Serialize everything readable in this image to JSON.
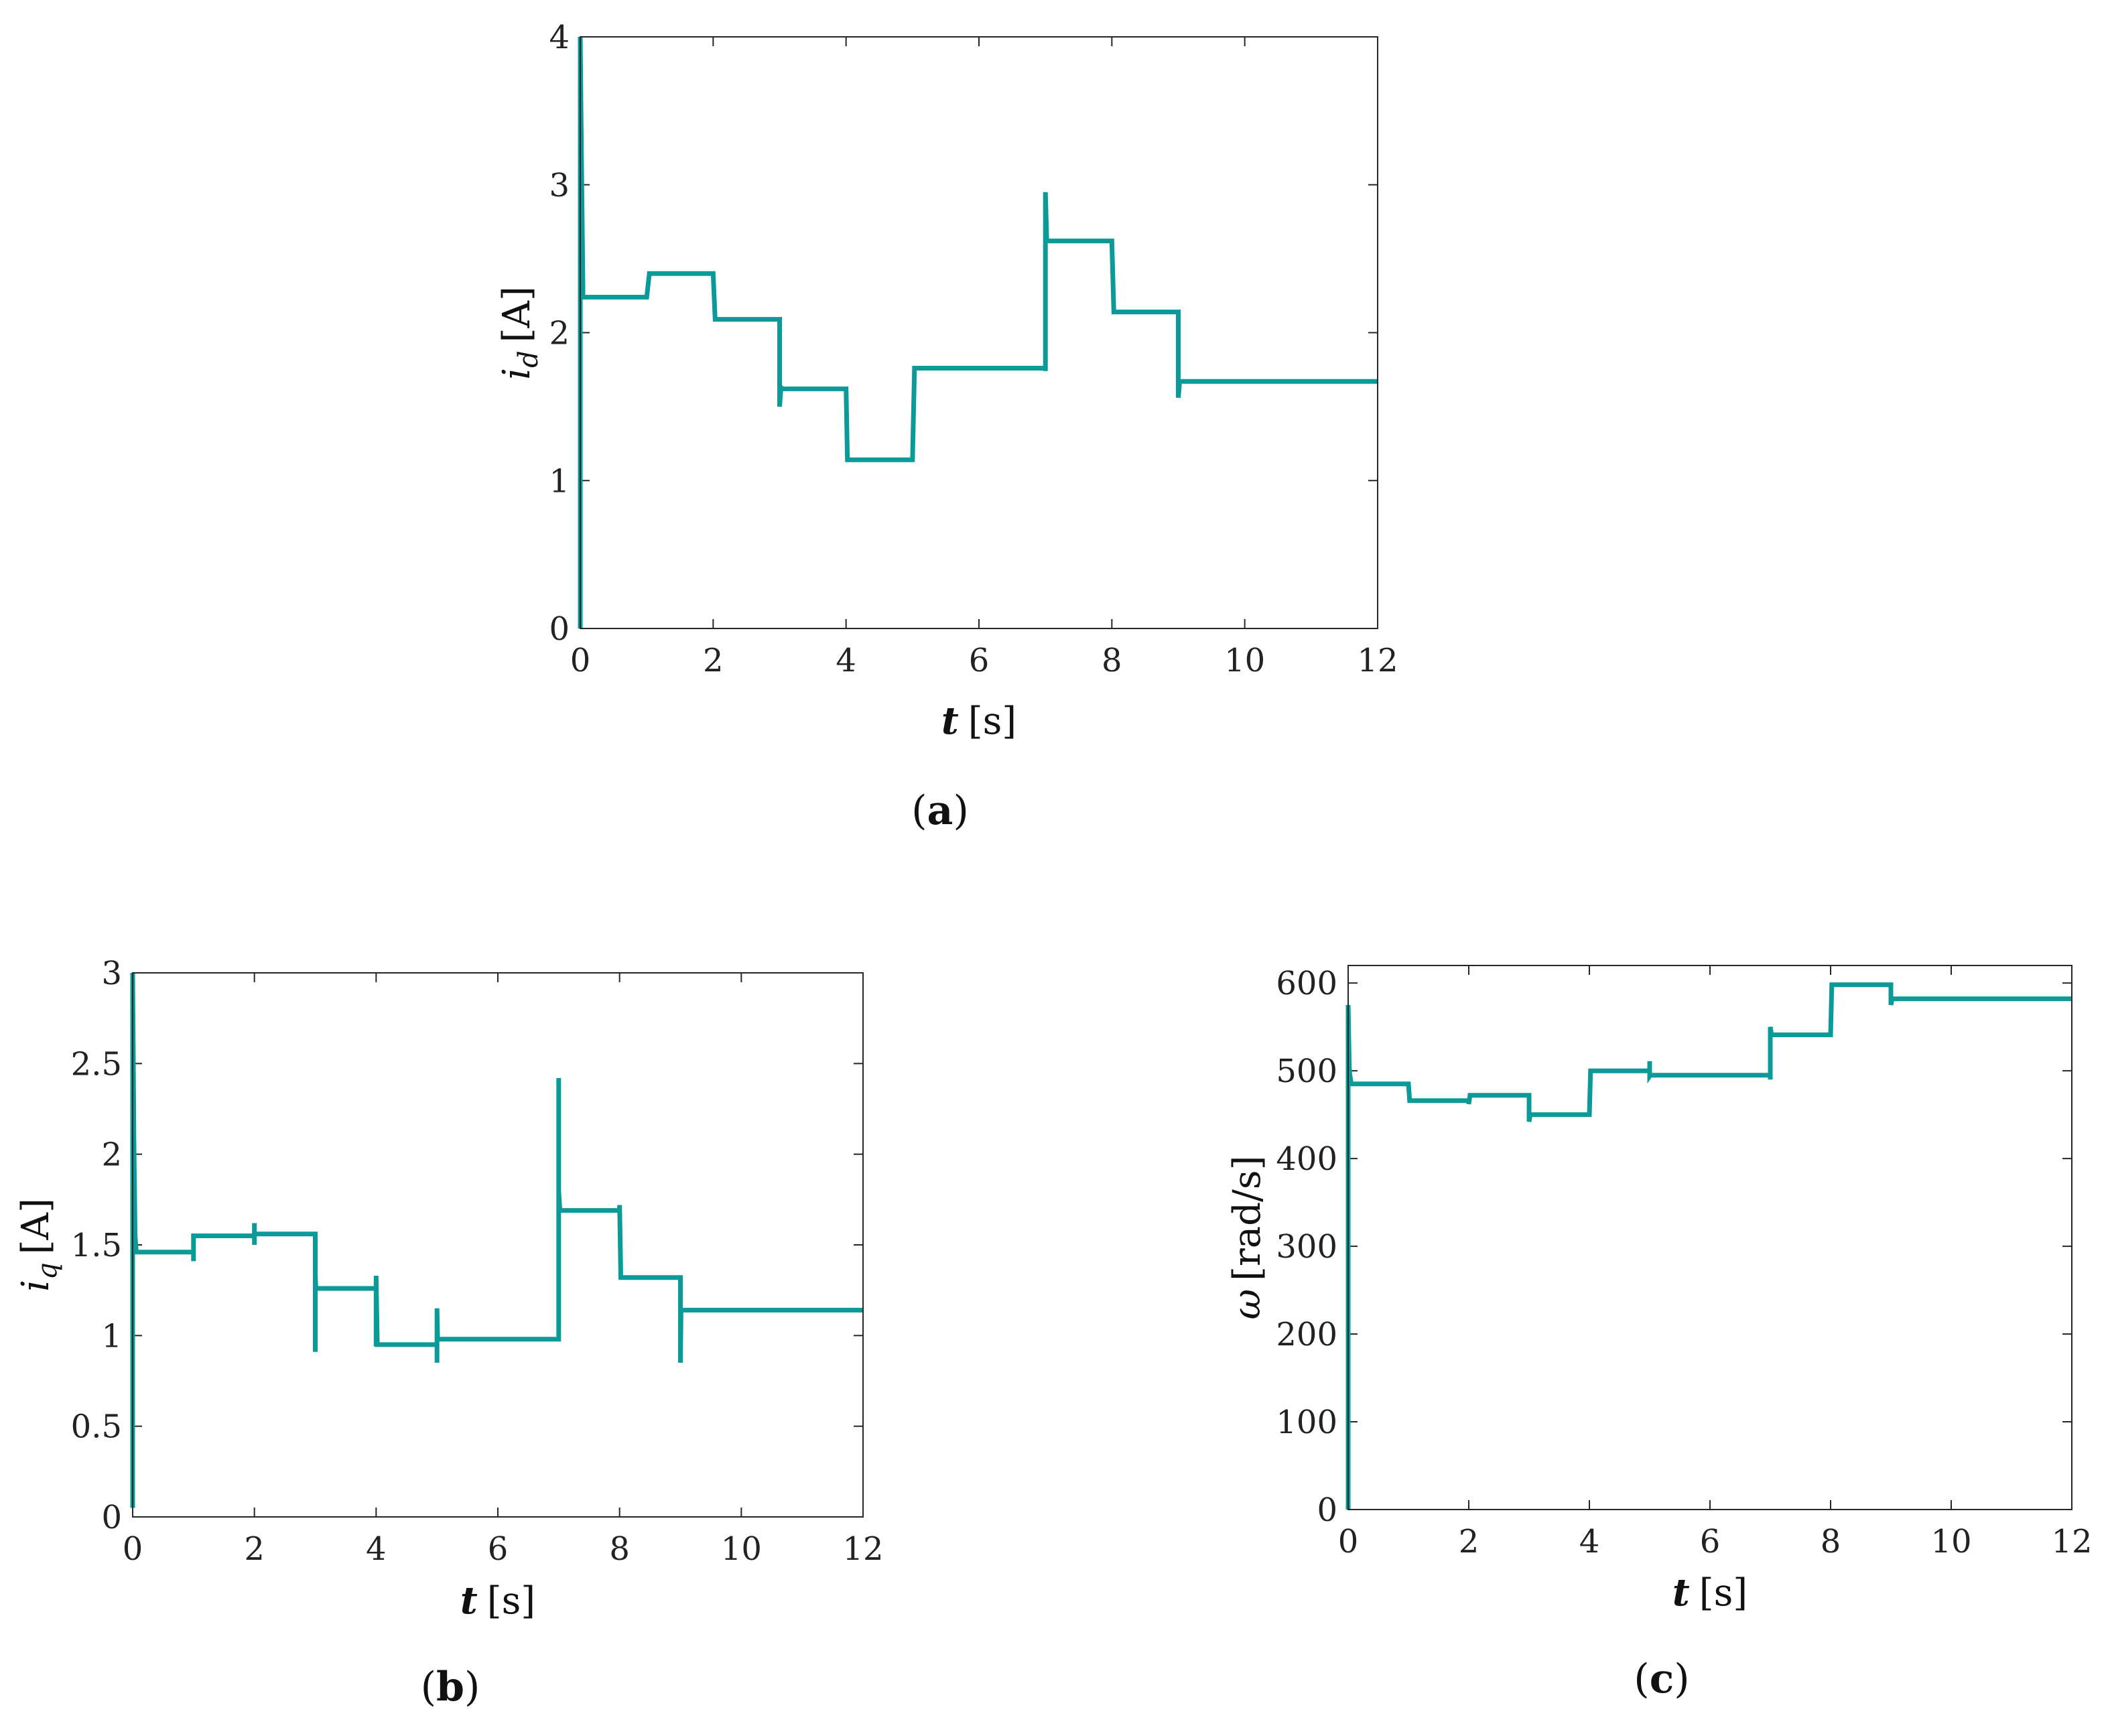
{
  "figure": {
    "series_color": "#0b9a97"
  },
  "chart_data": [
    {
      "type": "line",
      "panel": "a",
      "caption": {
        "letter": "a",
        "left": "(",
        "right": ")"
      },
      "title": "",
      "xlabel": {
        "var": "t",
        "unit": "[s]"
      },
      "ylabel": {
        "var": "i",
        "sub": "d",
        "unit": "[A]"
      },
      "xlim": [
        0,
        12
      ],
      "ylim": [
        0,
        4
      ],
      "xticks": [
        0,
        2,
        4,
        6,
        8,
        10,
        12
      ],
      "xtick_labels": [
        "0",
        "2",
        "4",
        "6",
        "8",
        "10",
        "12"
      ],
      "yticks": [
        0,
        1,
        2,
        3,
        4
      ],
      "ytick_labels": [
        "0",
        "1",
        "2",
        "3",
        "4"
      ],
      "grid": false,
      "series": [
        {
          "name": "i_d",
          "x": [
            0,
            0,
            0.02,
            0.04,
            0.04,
            1,
            1.04,
            2,
            2.03,
            3,
            3,
            3.02,
            3.04,
            4,
            4.02,
            5,
            5.03,
            7,
            7,
            7,
            7.02,
            8,
            8.03,
            9,
            9,
            9.02,
            12
          ],
          "y": [
            0,
            4.0,
            3.1,
            2.3,
            2.24,
            2.24,
            2.4,
            2.4,
            2.09,
            2.09,
            1.5,
            1.63,
            1.62,
            1.62,
            1.14,
            1.14,
            1.76,
            1.76,
            1.74,
            2.95,
            2.62,
            2.62,
            2.14,
            2.14,
            1.56,
            1.67,
            1.67
          ]
        }
      ]
    },
    {
      "type": "line",
      "panel": "b",
      "caption": {
        "letter": "b",
        "left": "(",
        "right": ")"
      },
      "title": "",
      "xlabel": {
        "var": "t",
        "unit": "[s]"
      },
      "ylabel": {
        "var": "i",
        "sub": "q",
        "unit": "[A]"
      },
      "xlim": [
        0,
        12
      ],
      "ylim": [
        0,
        3
      ],
      "xticks": [
        0,
        2,
        4,
        6,
        8,
        10,
        12
      ],
      "xtick_labels": [
        "0",
        "2",
        "4",
        "6",
        "8",
        "10",
        "12"
      ],
      "yticks": [
        0,
        0.5,
        1,
        1.5,
        2,
        2.5,
        3
      ],
      "ytick_labels": [
        "0",
        "0.5",
        "1",
        "1.5",
        "2",
        "2.5",
        "3"
      ],
      "grid": false,
      "series": [
        {
          "name": "i_q",
          "x": [
            0,
            0,
            0.02,
            0.04,
            0.06,
            1,
            1,
            1,
            2,
            2,
            2,
            2,
            3,
            3,
            3,
            3.01,
            4,
            4,
            4,
            4.02,
            5,
            5,
            5,
            5.01,
            7,
            7,
            7,
            7.02,
            8,
            8,
            8.02,
            9,
            9,
            9.01,
            12
          ],
          "y": [
            0.05,
            3.0,
            2.1,
            1.55,
            1.46,
            1.46,
            1.41,
            1.55,
            1.55,
            1.5,
            1.62,
            1.56,
            1.56,
            0.91,
            1.34,
            1.26,
            1.26,
            0.94,
            1.33,
            0.95,
            0.95,
            0.85,
            1.15,
            0.98,
            0.98,
            2.42,
            1.8,
            1.69,
            1.69,
            1.72,
            1.32,
            1.32,
            0.85,
            1.14,
            1.14
          ]
        }
      ]
    },
    {
      "type": "line",
      "panel": "c",
      "caption": {
        "letter": "c",
        "left": "(",
        "right": ")"
      },
      "title": "",
      "xlabel": {
        "var": "t",
        "unit": "[s]"
      },
      "ylabel": {
        "var": "ω",
        "sub": "",
        "unit": "[rad/s]"
      },
      "xlim": [
        0,
        12
      ],
      "ylim": [
        0,
        620
      ],
      "xticks": [
        0,
        2,
        4,
        6,
        8,
        10,
        12
      ],
      "xtick_labels": [
        "0",
        "2",
        "4",
        "6",
        "8",
        "10",
        "12"
      ],
      "yticks": [
        0,
        100,
        200,
        300,
        400,
        500,
        600
      ],
      "ytick_labels": [
        "0",
        "100",
        "200",
        "300",
        "400",
        "500",
        "600"
      ],
      "grid": false,
      "series": [
        {
          "name": "omega",
          "x": [
            0,
            0,
            0.02,
            0.05,
            1,
            1.02,
            2,
            2,
            2.02,
            3,
            3,
            3.02,
            4,
            4.02,
            5,
            5,
            5,
            5.01,
            7,
            7,
            7,
            7.02,
            8,
            8.02,
            9,
            9,
            9.02,
            12
          ],
          "y": [
            0,
            575,
            500,
            485,
            485,
            466,
            466,
            462,
            472,
            472,
            442,
            450,
            450,
            500,
            500,
            511,
            494,
            495,
            495,
            490,
            550,
            541,
            541,
            598,
            598,
            575,
            582,
            582
          ]
        }
      ]
    }
  ]
}
